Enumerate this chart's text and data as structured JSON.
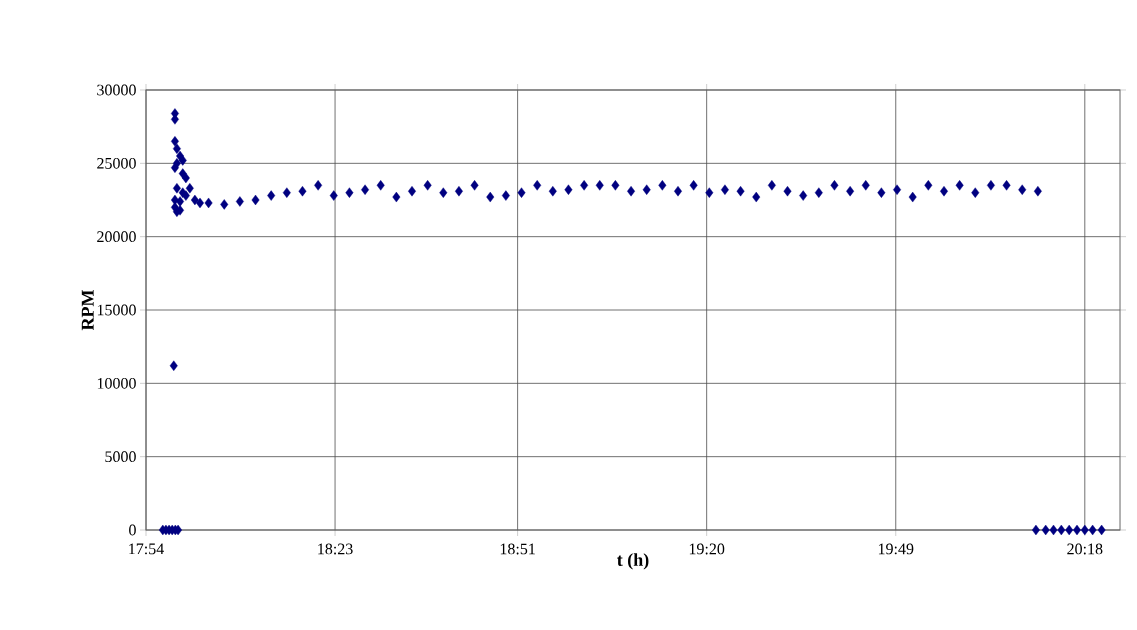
{
  "chart_data": {
    "type": "scatter",
    "xlabel": "t (h)",
    "ylabel": "RPM",
    "x": [
      17.943,
      17.951,
      17.959,
      17.967,
      17.975,
      17.982,
      17.971,
      17.974,
      17.974,
      17.974,
      17.974,
      17.974,
      17.974,
      17.979,
      17.979,
      17.979,
      17.979,
      17.987,
      17.987,
      17.987,
      17.994,
      17.994,
      17.994,
      18.002,
      18.002,
      18.012,
      18.025,
      18.038,
      18.06,
      18.1,
      18.14,
      18.18,
      18.22,
      18.26,
      18.3,
      18.34,
      18.38,
      18.42,
      18.46,
      18.5,
      18.54,
      18.58,
      18.62,
      18.66,
      18.7,
      18.74,
      18.78,
      18.82,
      18.86,
      18.9,
      18.94,
      18.98,
      19.02,
      19.06,
      19.1,
      19.14,
      19.18,
      19.22,
      19.26,
      19.3,
      19.34,
      19.38,
      19.42,
      19.46,
      19.5,
      19.54,
      19.58,
      19.62,
      19.66,
      19.7,
      19.74,
      19.78,
      19.82,
      19.86,
      19.9,
      19.94,
      19.98,
      20.02,
      20.06,
      20.1,
      20.14,
      20.18,
      20.175,
      20.2,
      20.22,
      20.24,
      20.26,
      20.28,
      20.3,
      20.32,
      20.343
    ],
    "values": [
      0,
      0,
      0,
      0,
      0,
      0,
      11200,
      28400,
      28000,
      26500,
      24700,
      22500,
      22000,
      26000,
      25000,
      23300,
      21700,
      25500,
      21800,
      22400,
      25200,
      24300,
      23000,
      24000,
      22800,
      23300,
      22500,
      22300,
      22300,
      22200,
      22400,
      22500,
      22800,
      23000,
      23100,
      23500,
      22800,
      23000,
      23200,
      23500,
      22700,
      23100,
      23500,
      23000,
      23100,
      23500,
      22700,
      22800,
      23000,
      23500,
      23100,
      23200,
      23500,
      23500,
      23500,
      23100,
      23200,
      23500,
      23100,
      23500,
      23000,
      23200,
      23100,
      22700,
      23500,
      23100,
      22800,
      23000,
      23500,
      23100,
      23500,
      23000,
      23200,
      22700,
      23500,
      23100,
      23500,
      23000,
      23500,
      23500,
      23200,
      23100,
      0,
      0,
      0,
      0,
      0,
      0,
      0,
      0,
      0
    ],
    "color": "#000080",
    "marker": "diamond",
    "xlim": [
      17.9,
      20.39
    ],
    "ylim": [
      0,
      30000
    ],
    "xticks": [
      {
        "value": 17.9,
        "label": "17:54"
      },
      {
        "value": 18.3833,
        "label": "18:23"
      },
      {
        "value": 18.85,
        "label": "18:51"
      },
      {
        "value": 19.3333,
        "label": "19:20"
      },
      {
        "value": 19.8167,
        "label": "19:49"
      },
      {
        "value": 20.3,
        "label": "20:18"
      }
    ],
    "yticks": [
      0,
      5000,
      10000,
      15000,
      20000,
      25000,
      30000
    ],
    "grid": true
  }
}
